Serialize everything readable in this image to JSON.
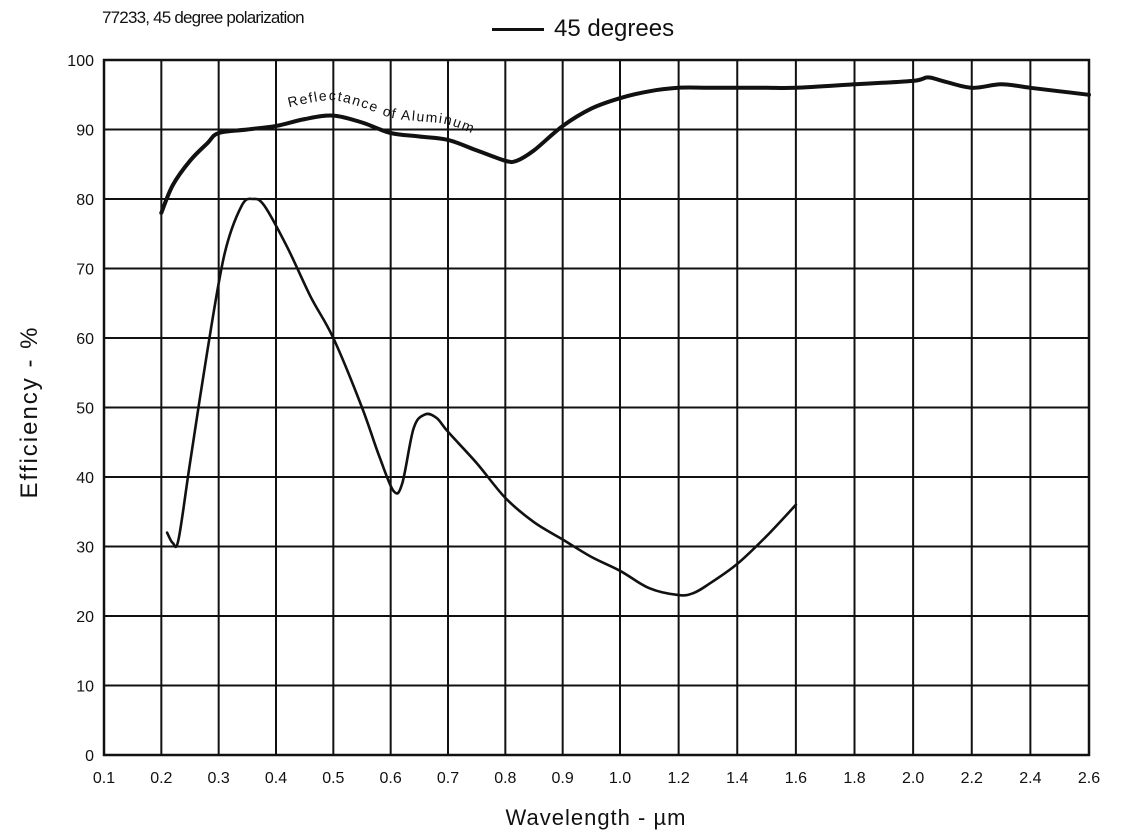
{
  "chart_data": {
    "type": "line",
    "title": "77233, 45 degree polarization",
    "xlabel": "Wavelength - µm",
    "ylabel": "Efficiency - %",
    "legend": {
      "placement": "top-center",
      "entries": [
        "45 degrees"
      ]
    },
    "grid": true,
    "xlim": [
      0.1,
      2.6
    ],
    "ylim": [
      0,
      100
    ],
    "x_ticks": [
      {
        "v": 0.1,
        "label": "0.1"
      },
      {
        "v": 0.2,
        "label": "0.2"
      },
      {
        "v": 0.3,
        "label": "0.3"
      },
      {
        "v": 0.4,
        "label": "0.4"
      },
      {
        "v": 0.5,
        "label": "0.5"
      },
      {
        "v": 0.6,
        "label": "0.6"
      },
      {
        "v": 0.7,
        "label": "0.7"
      },
      {
        "v": 0.8,
        "label": "0.8"
      },
      {
        "v": 0.9,
        "label": "0.9"
      },
      {
        "v": 1.0,
        "label": "1.0"
      },
      {
        "v": 1.2,
        "label": "1.2"
      },
      {
        "v": 1.4,
        "label": "1.4"
      },
      {
        "v": 1.6,
        "label": "1.6"
      },
      {
        "v": 1.8,
        "label": "1.8"
      },
      {
        "v": 2.0,
        "label": "2.0"
      },
      {
        "v": 2.2,
        "label": "2.2"
      },
      {
        "v": 2.4,
        "label": "2.4"
      },
      {
        "v": 2.6,
        "label": "2.6"
      }
    ],
    "y_ticks": [
      0,
      10,
      20,
      30,
      40,
      50,
      60,
      70,
      80,
      90,
      100
    ],
    "series": [
      {
        "name": "45 degrees",
        "x": [
          0.21,
          0.22,
          0.23,
          0.25,
          0.28,
          0.31,
          0.34,
          0.36,
          0.38,
          0.42,
          0.46,
          0.5,
          0.55,
          0.58,
          0.605,
          0.62,
          0.64,
          0.66,
          0.68,
          0.7,
          0.75,
          0.8,
          0.85,
          0.9,
          0.95,
          1.0,
          1.1,
          1.2,
          1.25,
          1.3,
          1.4,
          1.5,
          1.6
        ],
        "y": [
          32,
          30.5,
          31,
          42,
          58,
          72,
          79,
          80,
          79,
          73,
          66,
          60,
          50,
          43,
          38,
          39,
          47,
          49,
          48.5,
          46.5,
          42,
          37,
          33.5,
          31,
          28.5,
          26.5,
          24,
          23,
          23.3,
          24.5,
          27.5,
          31.5,
          36
        ]
      },
      {
        "name": "Reflectance of Aluminum",
        "x": [
          0.2,
          0.22,
          0.25,
          0.28,
          0.3,
          0.35,
          0.4,
          0.45,
          0.5,
          0.55,
          0.6,
          0.65,
          0.7,
          0.75,
          0.8,
          0.82,
          0.85,
          0.9,
          0.95,
          1.0,
          1.1,
          1.2,
          1.3,
          1.4,
          1.5,
          1.6,
          1.8,
          2.0,
          2.05,
          2.1,
          2.2,
          2.3,
          2.4,
          2.5,
          2.6
        ],
        "y": [
          78,
          82,
          85.5,
          88,
          89.5,
          90,
          90.5,
          91.5,
          92,
          91,
          89.5,
          89,
          88.5,
          87,
          85.5,
          85.5,
          87,
          90.5,
          93,
          94.5,
          95.5,
          96,
          96,
          96,
          96,
          96,
          96.5,
          97,
          97.5,
          97,
          96,
          96.5,
          96,
          95.5,
          95
        ]
      }
    ],
    "annotations": [
      {
        "text": "Reflectance of Aluminum",
        "x": 0.5,
        "y": 92.5
      }
    ]
  }
}
